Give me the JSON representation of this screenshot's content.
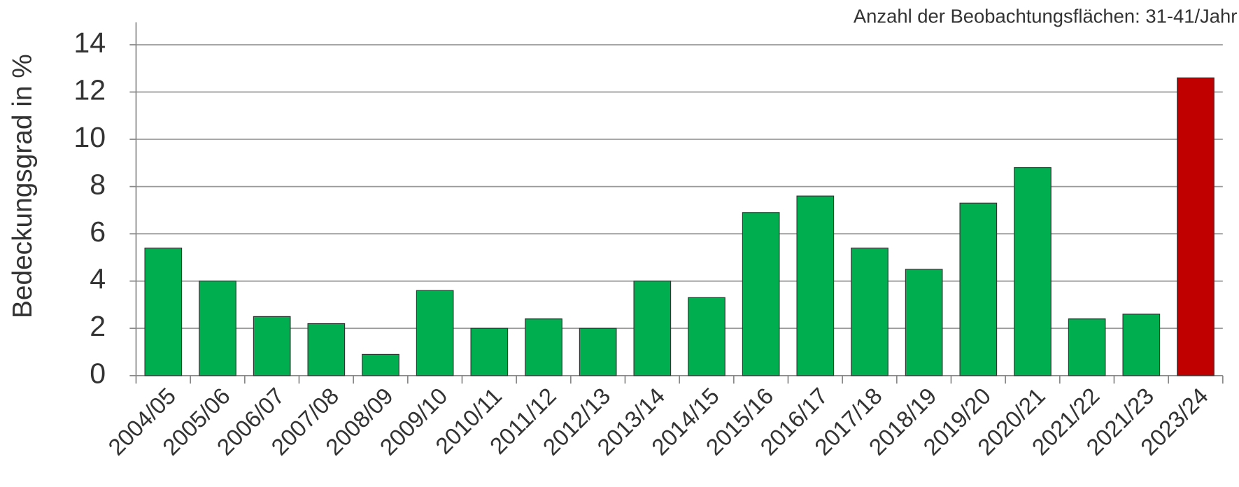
{
  "chart_data": {
    "type": "bar",
    "annotation": "Anzahl der Beobachtungsflächen: 31-41/Jahr",
    "y_label": "Bedeckungsgrad in %",
    "categories": [
      "2004/05",
      "2005/06",
      "2006/07",
      "2007/08",
      "2008/09",
      "2009/10",
      "2010/11",
      "2011/12",
      "2012/13",
      "2013/14",
      "2014/15",
      "2015/16",
      "2016/17",
      "2017/18",
      "2018/19",
      "2019/20",
      "2020/21",
      "2021/22",
      "2021/23",
      "2023/24"
    ],
    "values": [
      5.4,
      4.0,
      2.5,
      2.2,
      0.9,
      3.6,
      2.0,
      2.4,
      2.0,
      4.0,
      3.3,
      6.9,
      7.6,
      5.4,
      4.5,
      7.3,
      8.8,
      2.4,
      2.6,
      12.6
    ],
    "colors": [
      "#00ad4f",
      "#00ad4f",
      "#00ad4f",
      "#00ad4f",
      "#00ad4f",
      "#00ad4f",
      "#00ad4f",
      "#00ad4f",
      "#00ad4f",
      "#00ad4f",
      "#00ad4f",
      "#00ad4f",
      "#00ad4f",
      "#00ad4f",
      "#00ad4f",
      "#00ad4f",
      "#00ad4f",
      "#00ad4f",
      "#00ad4f",
      "#c00000"
    ],
    "ylim": [
      0,
      14
    ],
    "yticks": [
      0,
      2,
      4,
      6,
      8,
      10,
      12,
      14
    ],
    "grid": true
  }
}
